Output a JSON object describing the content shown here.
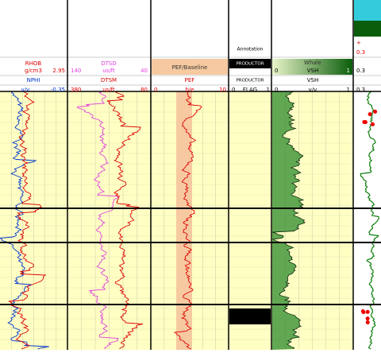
{
  "tracks": [
    {
      "curves": [
        {
          "name": "RHOB",
          "unit": "g/cm3",
          "right": "2.95"
        },
        {
          "name": "NPHI",
          "unit": "v/v",
          "right": "-0.35"
        }
      ]
    },
    {
      "curves": [
        {
          "name": "DTSD",
          "left": "140",
          "unit": "us/ft",
          "right": "40"
        },
        {
          "name": "DTSM",
          "left": "380",
          "unit": "us/ft",
          "right": "80"
        }
      ]
    },
    {
      "title": "PEF/Baseline",
      "curve": {
        "name": "PEF",
        "left": "0",
        "unit": "b/e",
        "right": "10"
      }
    },
    {
      "title": "Annotation",
      "fill": "PRODUCTOR",
      "name": "PRODUCTOR",
      "left": "0",
      "unit": "FLAG",
      "right": "1"
    },
    {
      "title": "Whale",
      "fill": {
        "left": "0",
        "name": "VSH",
        "right": "1"
      },
      "curve": {
        "name": "VSH",
        "left": "0",
        "unit": "v/v",
        "right": "1"
      }
    },
    {
      "marker": "+",
      "values": [
        "0.3",
        "0.3",
        "0.3"
      ]
    }
  ]
}
